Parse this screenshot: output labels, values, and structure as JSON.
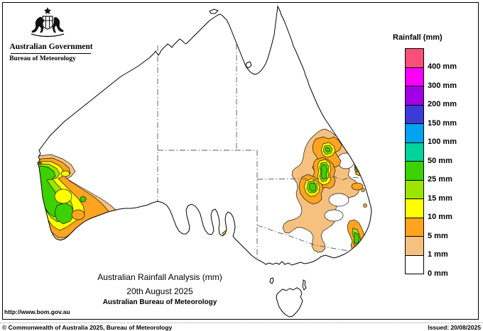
{
  "header": {
    "line1": "Australian Government",
    "line2": "Bureau of Meteorology"
  },
  "legend": {
    "title": "Rainfall (mm)",
    "entries": [
      {
        "color": "#F85078",
        "label": "400 mm"
      },
      {
        "color": "#FA00FA",
        "label": "300 mm"
      },
      {
        "color": "#A100E6",
        "label": "200 mm"
      },
      {
        "color": "#3B3BD7",
        "label": "150 mm"
      },
      {
        "color": "#00A3F0",
        "label": "100 mm"
      },
      {
        "color": "#00D49B",
        "label": "50 mm"
      },
      {
        "color": "#3CD200",
        "label": "25 mm"
      },
      {
        "color": "#9CE500",
        "label": "15 mm"
      },
      {
        "color": "#FFFF00",
        "label": "10 mm"
      },
      {
        "color": "#FFA41E",
        "label": "5 mm"
      },
      {
        "color": "#F6C17E",
        "label": "1 mm"
      },
      {
        "color": "#FFFFFF",
        "label": "0 mm"
      }
    ]
  },
  "map_titles": {
    "line1": "Australian Rainfall Analysis (mm)",
    "line2": "20th August 2025",
    "line3": "Australian Bureau of Meteorology"
  },
  "footer": {
    "url": "http://www.bom.gov.au",
    "copyright": "© Commonwealth of Australia 2025, Bureau of Meteorology",
    "issued": "Issued: 20/08/2025"
  }
}
